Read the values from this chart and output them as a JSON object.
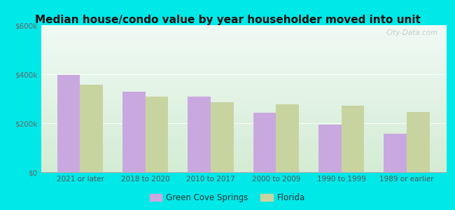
{
  "title": "Median house/condo value by year householder moved into unit",
  "categories": [
    "2021 or later",
    "2018 to 2020",
    "2010 to 2017",
    "2000 to 2009",
    "1990 to 1999",
    "1989 or earlier"
  ],
  "green_cove_springs": [
    398000,
    328000,
    308000,
    242000,
    193000,
    158000
  ],
  "florida": [
    358000,
    308000,
    285000,
    278000,
    272000,
    245000
  ],
  "bar_color_gcs": "#c9a8e0",
  "bar_color_fl": "#c8d4a0",
  "background_outer": "#00e8e8",
  "background_inner_top": "#f0faf5",
  "background_inner_bottom": "#d4ecd4",
  "ylim": [
    0,
    600000
  ],
  "yticks": [
    0,
    200000,
    400000,
    600000
  ],
  "ytick_labels": [
    "$0",
    "$200k",
    "$400k",
    "$600k"
  ],
  "legend_labels": [
    "Green Cove Springs",
    "Florida"
  ],
  "watermark": "City-Data.com"
}
